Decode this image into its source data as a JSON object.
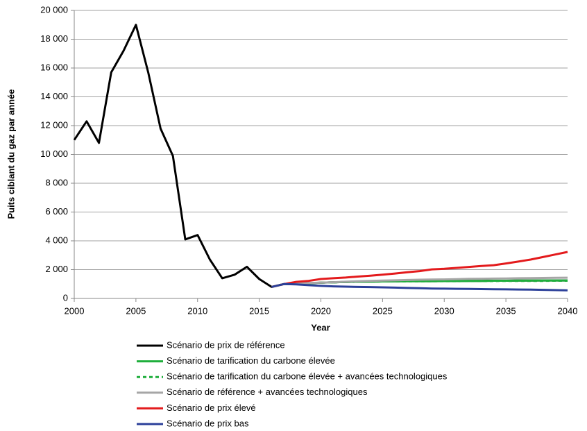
{
  "chart_data": {
    "type": "line",
    "x_label": "Year",
    "y_label": "Puits ciblant du gaz par année",
    "x": [
      2000,
      2001,
      2002,
      2003,
      2004,
      2005,
      2006,
      2007,
      2008,
      2009,
      2010,
      2011,
      2012,
      2013,
      2014,
      2015,
      2016,
      2017,
      2018,
      2019,
      2020,
      2021,
      2022,
      2023,
      2024,
      2025,
      2026,
      2027,
      2028,
      2029,
      2030,
      2031,
      2032,
      2033,
      2034,
      2035,
      2036,
      2037,
      2038,
      2039,
      2040
    ],
    "xlim": [
      2000,
      2040
    ],
    "xticks": [
      2000,
      2005,
      2010,
      2015,
      2020,
      2025,
      2030,
      2035,
      2040
    ],
    "ylim": [
      0,
      20000
    ],
    "yticks": [
      0,
      {
        "value": 2000,
        "label": "2 000"
      },
      {
        "value": 4000,
        "label": "4 000"
      },
      {
        "value": 6000,
        "label": "6 000"
      },
      {
        "value": 8000,
        "label": "8 000"
      },
      {
        "value": 10000,
        "label": "10 000"
      },
      {
        "value": 12000,
        "label": "12 000"
      },
      {
        "value": 14000,
        "label": "14 000"
      },
      {
        "value": 16000,
        "label": "16 000"
      },
      {
        "value": 18000,
        "label": "18 000"
      },
      {
        "value": 20000,
        "label": "20 000"
      }
    ],
    "grid": true,
    "legend": "bottom",
    "series": [
      {
        "name": "Scénario de prix de référence",
        "color": "#000000",
        "dashed": false,
        "values": [
          11000,
          12300,
          10800,
          15700,
          17200,
          19000,
          15700,
          11800,
          9900,
          4100,
          4400,
          2700,
          1400,
          1650,
          2200,
          1350,
          800,
          1000,
          1000,
          1050,
          1100,
          1120,
          1140,
          1160,
          1170,
          1180,
          1190,
          1200,
          1200,
          1200,
          1210,
          1210,
          1220,
          1220,
          1230,
          1230,
          1240,
          1240,
          1250,
          1250,
          1250
        ]
      },
      {
        "name": "Scénario de tarification du carbone élevée",
        "color": "#1fae3c",
        "dashed": false,
        "values": [
          null,
          null,
          null,
          null,
          null,
          null,
          null,
          null,
          null,
          null,
          null,
          null,
          null,
          null,
          null,
          null,
          800,
          1000,
          1000,
          1050,
          1100,
          1120,
          1140,
          1160,
          1170,
          1180,
          1190,
          1200,
          1200,
          1200,
          1210,
          1210,
          1220,
          1220,
          1230,
          1230,
          1240,
          1240,
          1250,
          1250,
          1250
        ]
      },
      {
        "name": "Scénario de tarification du carbone élevée + avancées technologiques",
        "color": "#1fae3c",
        "dashed": true,
        "values": [
          null,
          null,
          null,
          null,
          null,
          null,
          null,
          null,
          null,
          null,
          null,
          null,
          null,
          null,
          null,
          null,
          800,
          1000,
          1000,
          1050,
          1100,
          1120,
          1140,
          1160,
          1170,
          1180,
          1180,
          1190,
          1190,
          1200,
          1200,
          1200,
          1210,
          1210,
          1210,
          1220,
          1220,
          1220,
          1220,
          1230,
          1230
        ]
      },
      {
        "name": "Scénario de référence + avancées technologiques",
        "color": "#a6a6a6",
        "dashed": false,
        "values": [
          null,
          null,
          null,
          null,
          null,
          null,
          null,
          null,
          null,
          null,
          null,
          null,
          null,
          null,
          null,
          null,
          800,
          1000,
          1030,
          1070,
          1100,
          1130,
          1160,
          1190,
          1220,
          1240,
          1260,
          1280,
          1300,
          1310,
          1320,
          1340,
          1360,
          1370,
          1380,
          1390,
          1400,
          1410,
          1420,
          1430,
          1440
        ]
      },
      {
        "name": "Scénario de prix élevé",
        "color": "#e31a1c",
        "dashed": false,
        "values": [
          null,
          null,
          null,
          null,
          null,
          null,
          null,
          null,
          null,
          null,
          null,
          null,
          null,
          null,
          null,
          null,
          800,
          1000,
          1150,
          1220,
          1350,
          1400,
          1450,
          1520,
          1580,
          1650,
          1730,
          1820,
          1900,
          2020,
          2060,
          2120,
          2190,
          2250,
          2310,
          2430,
          2560,
          2700,
          2870,
          3050,
          3230
        ]
      },
      {
        "name": "Scénario de prix bas",
        "color": "#2b3f99",
        "dashed": false,
        "values": [
          null,
          null,
          null,
          null,
          null,
          null,
          null,
          null,
          null,
          null,
          null,
          null,
          null,
          null,
          null,
          null,
          800,
          1000,
          980,
          920,
          870,
          840,
          820,
          800,
          790,
          770,
          750,
          730,
          710,
          690,
          680,
          670,
          660,
          650,
          640,
          630,
          620,
          610,
          600,
          580,
          560
        ]
      }
    ]
  }
}
